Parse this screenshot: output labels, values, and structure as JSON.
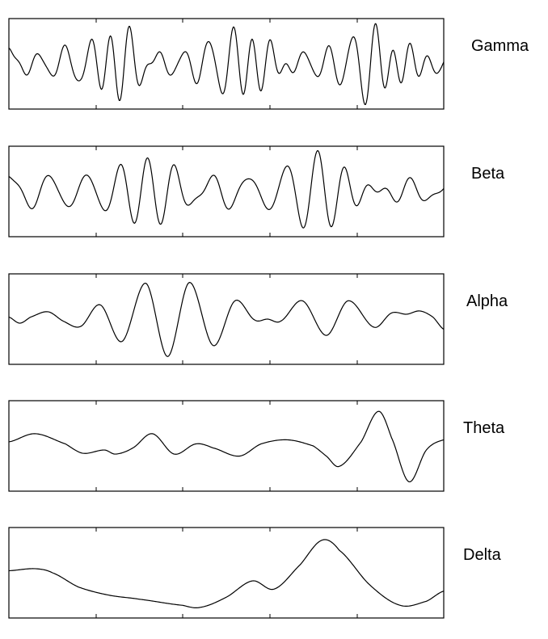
{
  "chart_data": {
    "type": "line",
    "title": "",
    "xlabel": "",
    "ylabel": "",
    "grid": false,
    "panels": [
      {
        "name": "Gamma",
        "seed": 11,
        "components": [
          {
            "freq": 18.0,
            "amp": 0.3,
            "phase": 0.3
          },
          {
            "freq": 21.5,
            "amp": 0.28,
            "phase": 1.7
          },
          {
            "freq": 24.7,
            "amp": 0.22,
            "phase": 2.9
          },
          {
            "freq": 15.3,
            "amp": 0.18,
            "phase": 0.9
          },
          {
            "freq": 27.9,
            "amp": 0.14,
            "phase": 4.1
          },
          {
            "freq": 12.2,
            "amp": 0.1,
            "phase": 5.3
          }
        ]
      },
      {
        "name": "Beta",
        "seed": 23,
        "components": [
          {
            "freq": 13.0,
            "amp": 0.32,
            "phase": 0.5
          },
          {
            "freq": 15.4,
            "amp": 0.26,
            "phase": 2.2
          },
          {
            "freq": 17.9,
            "amp": 0.2,
            "phase": 3.6
          },
          {
            "freq": 11.1,
            "amp": 0.16,
            "phase": 1.1
          },
          {
            "freq": 20.2,
            "amp": 0.1,
            "phase": 4.8
          }
        ]
      },
      {
        "name": "Alpha",
        "seed": 0,
        "points": [
          [
            0.0,
            0.05
          ],
          [
            0.025,
            -0.1
          ],
          [
            0.05,
            0.05
          ],
          [
            0.09,
            0.18
          ],
          [
            0.125,
            -0.05
          ],
          [
            0.165,
            -0.18
          ],
          [
            0.21,
            0.35
          ],
          [
            0.26,
            -0.55
          ],
          [
            0.315,
            0.88
          ],
          [
            0.365,
            -0.92
          ],
          [
            0.415,
            0.9
          ],
          [
            0.47,
            -0.65
          ],
          [
            0.52,
            0.45
          ],
          [
            0.565,
            -0.02
          ],
          [
            0.595,
            0.0
          ],
          [
            0.625,
            -0.05
          ],
          [
            0.675,
            0.45
          ],
          [
            0.73,
            -0.4
          ],
          [
            0.78,
            0.45
          ],
          [
            0.84,
            -0.2
          ],
          [
            0.88,
            0.15
          ],
          [
            0.915,
            0.12
          ],
          [
            0.945,
            0.2
          ],
          [
            0.975,
            0.05
          ],
          [
            1.0,
            -0.25
          ]
        ]
      },
      {
        "name": "Theta",
        "seed": 0,
        "points": [
          [
            0.0,
            0.1
          ],
          [
            0.06,
            0.3
          ],
          [
            0.13,
            0.05
          ],
          [
            0.17,
            -0.18
          ],
          [
            0.22,
            -0.1
          ],
          [
            0.245,
            -0.2
          ],
          [
            0.285,
            -0.05
          ],
          [
            0.33,
            0.3
          ],
          [
            0.38,
            -0.2
          ],
          [
            0.43,
            0.05
          ],
          [
            0.47,
            -0.05
          ],
          [
            0.53,
            -0.25
          ],
          [
            0.58,
            0.05
          ],
          [
            0.64,
            0.15
          ],
          [
            0.7,
            0.0
          ],
          [
            0.73,
            -0.25
          ],
          [
            0.76,
            -0.5
          ],
          [
            0.81,
            0.1
          ],
          [
            0.85,
            0.85
          ],
          [
            0.88,
            0.2
          ],
          [
            0.92,
            -0.88
          ],
          [
            0.96,
            -0.1
          ],
          [
            1.0,
            0.15
          ]
        ]
      },
      {
        "name": "Delta",
        "seed": 0,
        "points": [
          [
            0.0,
            0.05
          ],
          [
            0.06,
            0.1
          ],
          [
            0.1,
            0.0
          ],
          [
            0.16,
            -0.35
          ],
          [
            0.23,
            -0.55
          ],
          [
            0.3,
            -0.65
          ],
          [
            0.4,
            -0.8
          ],
          [
            0.44,
            -0.85
          ],
          [
            0.5,
            -0.6
          ],
          [
            0.56,
            -0.2
          ],
          [
            0.61,
            -0.4
          ],
          [
            0.67,
            0.2
          ],
          [
            0.72,
            0.8
          ],
          [
            0.76,
            0.55
          ],
          [
            0.83,
            -0.3
          ],
          [
            0.9,
            -0.8
          ],
          [
            0.96,
            -0.7
          ],
          [
            1.0,
            -0.45
          ]
        ]
      }
    ]
  }
}
